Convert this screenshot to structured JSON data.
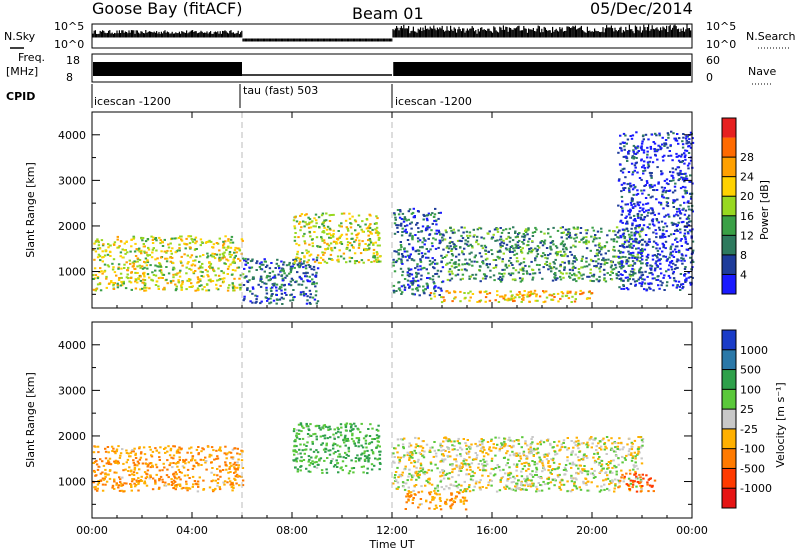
{
  "header": {
    "station": "Goose Bay (fitACF)",
    "beam": "Beam 01",
    "date": "05/Dec/2014"
  },
  "side_labels": {
    "nsky": "N.Sky",
    "nsearch": "N.Search",
    "freq_top": "Freq.",
    "freq_unit": "[MHz]",
    "nave": "Nave",
    "cpid": "CPID"
  },
  "noise_axis": {
    "left_top": "10^5",
    "left_bottom": "10^0",
    "right_top": "10^5",
    "right_bottom": "10^0"
  },
  "freq_axis": {
    "left_top": "18",
    "left_bottom": "8",
    "right_top": "60",
    "right_bottom": "0"
  },
  "cpid_segments": [
    {
      "label": "icescan -1200",
      "start_hour": 0,
      "end_hour": 6
    },
    {
      "label": "tau (fast) 503",
      "start_hour": 6,
      "end_hour": 12
    },
    {
      "label": "icescan -1200",
      "start_hour": 12,
      "end_hour": 24
    }
  ],
  "panels": {
    "power": {
      "ylabel": "Slant Range [km]",
      "cbar_label": "Power [dB]"
    },
    "velocity": {
      "ylabel": "Slant Range [km]",
      "cbar_label": "Velocity [m s⁻¹]"
    }
  },
  "xaxis": {
    "label": "Time UT",
    "ticks": [
      "00:00",
      "04:00",
      "08:00",
      "12:00",
      "16:00",
      "20:00",
      "00:00"
    ]
  },
  "chart_data": [
    {
      "type": "heatmap",
      "title": "Power",
      "x_unit": "hour UT",
      "xlim": [
        0,
        24
      ],
      "ylim": [
        200,
        4500
      ],
      "yticks": [
        1000,
        2000,
        3000,
        4000
      ],
      "ylabel": "Slant Range [km]",
      "colorbar": {
        "label": "Power [dB]",
        "ticks": [
          4,
          8,
          12,
          16,
          20,
          24,
          28
        ],
        "colors": [
          "#1a1aff",
          "#1e3c9a",
          "#2e7a5e",
          "#3aa046",
          "#98d820",
          "#ffd200",
          "#ffa000",
          "#ff6a00",
          "#e62020"
        ]
      },
      "echo_regions": [
        {
          "start_hour": 0.0,
          "end_hour": 6.0,
          "range_min": 600,
          "range_max": 1800,
          "level": 20
        },
        {
          "start_hour": 6.0,
          "end_hour": 9.0,
          "range_min": 300,
          "range_max": 1300,
          "level": 8
        },
        {
          "start_hour": 8.0,
          "end_hour": 11.5,
          "range_min": 1200,
          "range_max": 2300,
          "level": 20
        },
        {
          "start_hour": 12.0,
          "end_hour": 14.0,
          "range_min": 500,
          "range_max": 2400,
          "level": 8
        },
        {
          "start_hour": 13.5,
          "end_hour": 20.0,
          "range_min": 350,
          "range_max": 600,
          "level": 24
        },
        {
          "start_hour": 14.0,
          "end_hour": 22.0,
          "range_min": 800,
          "range_max": 2000,
          "level": 12
        },
        {
          "start_hour": 21.0,
          "end_hour": 24.0,
          "range_min": 600,
          "range_max": 4100,
          "level": 4
        }
      ]
    },
    {
      "type": "heatmap",
      "title": "Velocity",
      "x_unit": "hour UT",
      "xlim": [
        0,
        24
      ],
      "ylim": [
        200,
        4500
      ],
      "yticks": [
        1000,
        2000,
        3000,
        4000
      ],
      "ylabel": "Slant Range [km]",
      "colorbar": {
        "label": "Velocity [m s⁻¹]",
        "ticks": [
          1000,
          500,
          100,
          25,
          -25,
          -100,
          -500,
          -1000
        ],
        "colors": [
          "#1a3cc8",
          "#2a78a8",
          "#2ea04a",
          "#5ac83a",
          "#c8c8c8",
          "#ffb000",
          "#ff7a00",
          "#ff3a00",
          "#e61414"
        ]
      },
      "echo_regions": [
        {
          "start_hour": 0.0,
          "end_hour": 6.0,
          "range_min": 800,
          "range_max": 1800,
          "level": -100
        },
        {
          "start_hour": 8.0,
          "end_hour": 11.5,
          "range_min": 1200,
          "range_max": 2300,
          "level": 100
        },
        {
          "start_hour": 12.0,
          "end_hour": 22.0,
          "range_min": 800,
          "range_max": 2000,
          "level": 0
        },
        {
          "start_hour": 12.5,
          "end_hour": 15.0,
          "range_min": 400,
          "range_max": 800,
          "level": -100
        },
        {
          "start_hour": 21.0,
          "end_hour": 22.5,
          "range_min": 800,
          "range_max": 1200,
          "level": -500
        }
      ]
    }
  ]
}
